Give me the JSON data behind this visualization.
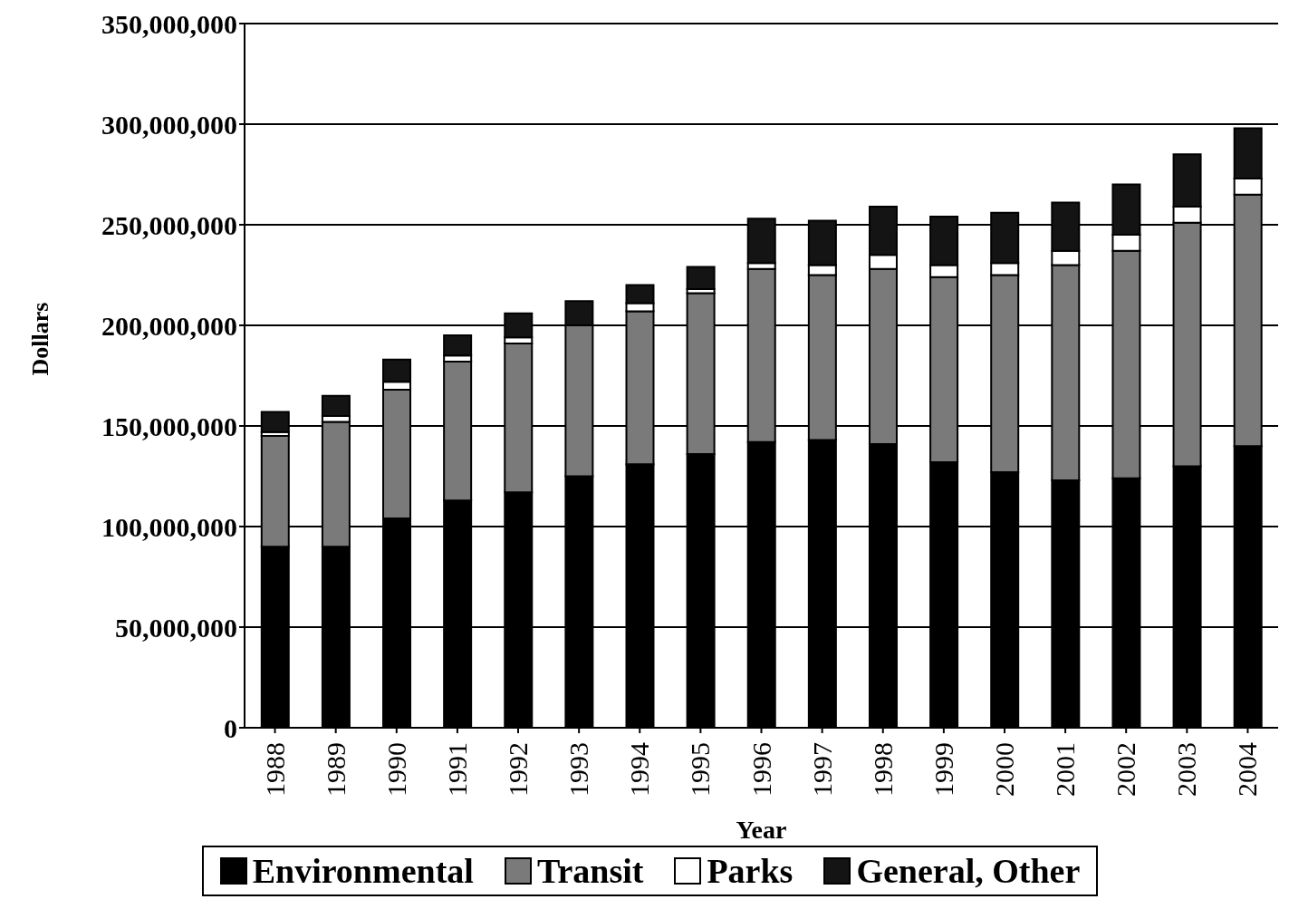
{
  "chart_data": {
    "type": "bar",
    "stacked": true,
    "xlabel": "Year",
    "ylabel": "Dollars",
    "categories": [
      "1988",
      "1989",
      "1990",
      "1991",
      "1992",
      "1993",
      "1994",
      "1995",
      "1996",
      "1997",
      "1998",
      "1999",
      "2000",
      "2001",
      "2002",
      "2003",
      "2004"
    ],
    "series": [
      {
        "name": "Environmental",
        "color": "#000000",
        "values": [
          90000000,
          90000000,
          104000000,
          113000000,
          117000000,
          125000000,
          131000000,
          136000000,
          142000000,
          143000000,
          141000000,
          132000000,
          127000000,
          123000000,
          124000000,
          130000000,
          140000000
        ]
      },
      {
        "name": "Transit",
        "color": "#7a7a7a",
        "values": [
          55000000,
          62000000,
          64000000,
          69000000,
          74000000,
          75000000,
          76000000,
          80000000,
          86000000,
          82000000,
          87000000,
          92000000,
          98000000,
          107000000,
          113000000,
          121000000,
          125000000
        ]
      },
      {
        "name": "Parks",
        "color": "#ffffff",
        "values": [
          2000000,
          3000000,
          4000000,
          3000000,
          3000000,
          null,
          4000000,
          2000000,
          3000000,
          5000000,
          7000000,
          6000000,
          6000000,
          7000000,
          8000000,
          8000000,
          8000000
        ]
      },
      {
        "name": "General, Other",
        "color": "#141414",
        "values": [
          10000000,
          10000000,
          11000000,
          10000000,
          12000000,
          12000000,
          9000000,
          11000000,
          22000000,
          22000000,
          24000000,
          24000000,
          25000000,
          24000000,
          25000000,
          26000000,
          25000000
        ]
      }
    ],
    "ylim": [
      0,
      350000000
    ],
    "yticks": [
      {
        "value": 0,
        "label": "0"
      },
      {
        "value": 50000000,
        "label": "50,000,000"
      },
      {
        "value": 100000000,
        "label": "100,000,000"
      },
      {
        "value": 150000000,
        "label": "150,000,000"
      },
      {
        "value": 200000000,
        "label": "200,000,000"
      },
      {
        "value": 250000000,
        "label": "250,000,000"
      },
      {
        "value": 300000000,
        "label": "300,000,000"
      },
      {
        "value": 350000000,
        "label": "350,000,000"
      }
    ],
    "grid": "y",
    "legend": "bottom"
  }
}
